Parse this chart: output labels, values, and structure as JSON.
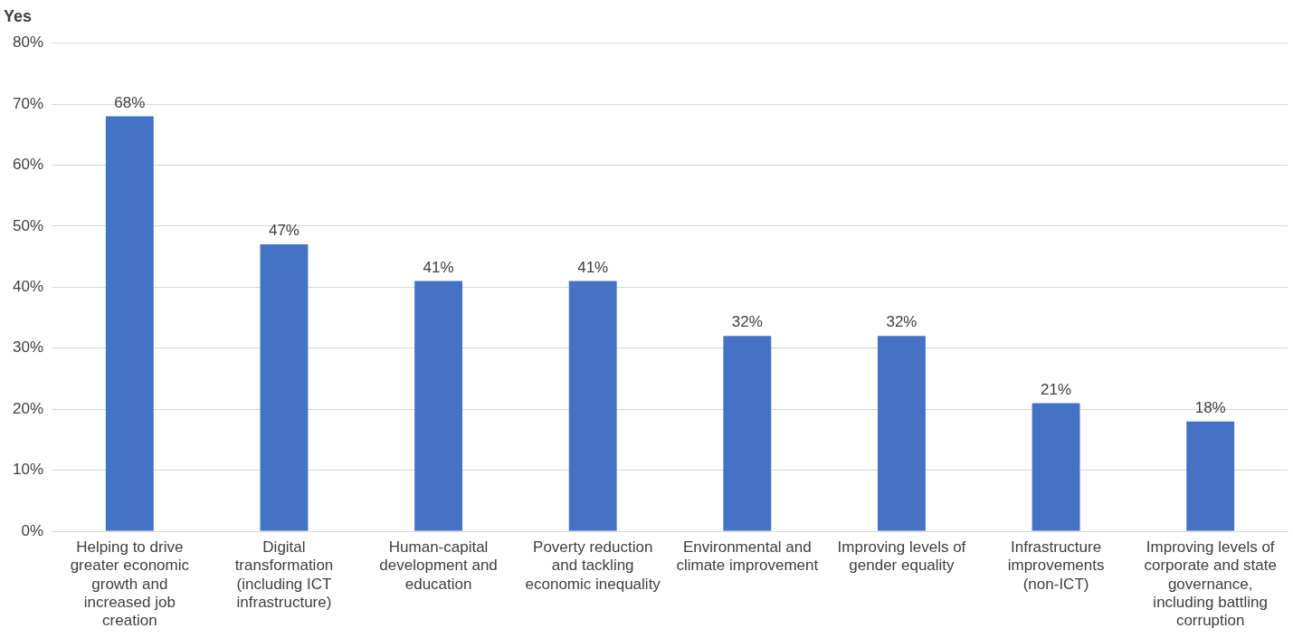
{
  "chart_data": {
    "type": "bar",
    "ylabel": "Yes",
    "categories": [
      "Helping to drive greater economic growth and increased job creation",
      "Digital transformation (including ICT infrastructure)",
      "Human-capital development and education",
      "Poverty reduction and tackling economic inequality",
      "Environmental and climate improvement",
      "Improving levels of gender equality",
      "Infrastructure improvements (non-ICT)",
      "Improving levels of corporate and state governance, including battling corruption"
    ],
    "values": [
      68,
      47,
      41,
      41,
      32,
      32,
      21,
      18
    ],
    "value_labels": [
      "68%",
      "47%",
      "41%",
      "41%",
      "32%",
      "32%",
      "21%",
      "18%"
    ],
    "color": "#4472c4",
    "ylim": [
      0,
      80
    ],
    "yticks": [
      {
        "value": 0,
        "label": "0%"
      },
      {
        "value": 10,
        "label": "10%"
      },
      {
        "value": 20,
        "label": "20%"
      },
      {
        "value": 30,
        "label": "30%"
      },
      {
        "value": 40,
        "label": "40%"
      },
      {
        "value": 50,
        "label": "50%"
      },
      {
        "value": 60,
        "label": "60%"
      },
      {
        "value": 70,
        "label": "70%"
      },
      {
        "value": 80,
        "label": "80%"
      }
    ],
    "grid": "y",
    "legend": false
  }
}
